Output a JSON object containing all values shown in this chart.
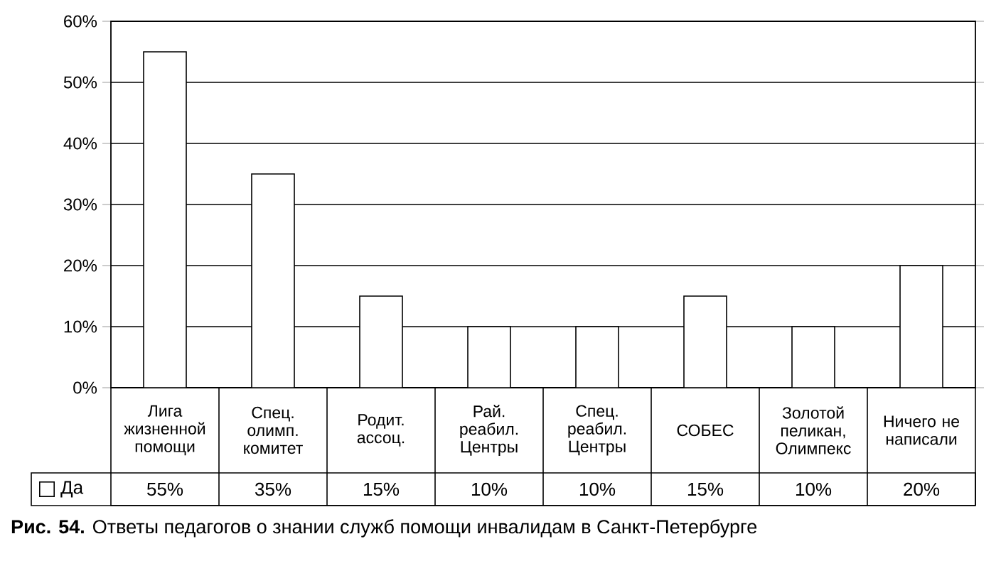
{
  "chart_data": {
    "type": "bar",
    "title": "**Рис. 54.** Ответы педагогов о знании служб помощи инвалидам в Санкт-Петербурге",
    "categories": [
      "Лига жизненной помощи",
      "Спец. олимп. комитет",
      "Родит. ассоц.",
      "Рай. реабил. Центры",
      "Спец. реабил. Центры",
      "СОБЕС",
      "Золотой пеликан, Олимпекс",
      "Ничего не написали"
    ],
    "series": [
      {
        "name": "Да",
        "color": "#ffffff",
        "values": [
          55,
          35,
          15,
          10,
          10,
          15,
          10,
          20
        ],
        "value_labels": [
          "55%",
          "35%",
          "15%",
          "10%",
          "10%",
          "15%",
          "10%",
          "20%"
        ]
      }
    ],
    "ylim": [
      0,
      60
    ],
    "yticks": [
      {
        "value": 0,
        "label": "0%"
      },
      {
        "value": 10,
        "label": "10%"
      },
      {
        "value": 20,
        "label": "20%"
      },
      {
        "value": 30,
        "label": "30%"
      },
      {
        "value": 40,
        "label": "40%"
      },
      {
        "value": 50,
        "label": "50%"
      },
      {
        "value": 60,
        "label": "60%"
      }
    ],
    "grid": true,
    "legend": "bottom left"
  }
}
